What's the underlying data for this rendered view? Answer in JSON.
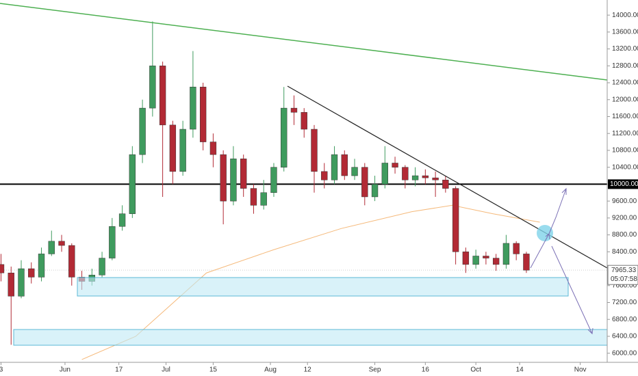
{
  "chart_data": {
    "type": "candlestick",
    "x": [
      -19,
      -16,
      -13,
      -10,
      -7,
      -4,
      -1,
      2,
      5,
      8,
      11,
      14,
      17,
      20,
      23,
      26,
      29,
      32,
      35,
      38,
      41,
      44,
      47,
      50,
      53,
      56,
      59,
      62,
      65,
      68,
      71,
      74,
      77,
      80,
      83,
      86,
      89,
      92,
      95,
      98,
      101,
      104,
      107,
      110,
      113,
      116,
      119,
      122,
      125,
      128,
      131,
      134,
      137
    ],
    "open": [
      8100,
      7900,
      7350,
      8000,
      7800,
      8350,
      8650,
      8550,
      7800,
      7700,
      7850,
      8250,
      9000,
      9300,
      10700,
      11800,
      12800,
      11400,
      10300,
      11300,
      12300,
      11000,
      10700,
      9600,
      10600,
      9900,
      9500,
      9800,
      10400,
      11800,
      11700,
      11300,
      10300,
      10100,
      10700,
      10200,
      10400,
      9700,
      10000,
      10500,
      10400,
      10100,
      10200,
      10150,
      10100,
      9900,
      8400,
      8100,
      8300,
      8250,
      8100,
      8600,
      8350
    ],
    "high": [
      8350,
      8050,
      8200,
      8150,
      8500,
      8900,
      8800,
      8600,
      7950,
      8000,
      8400,
      9200,
      9500,
      10900,
      12000,
      13850,
      12900,
      11500,
      11500,
      13150,
      12400,
      11200,
      10800,
      10900,
      10700,
      10000,
      10100,
      10500,
      12300,
      12100,
      11800,
      11400,
      10500,
      10900,
      10800,
      10600,
      10500,
      10200,
      10900,
      10650,
      10450,
      10400,
      10350,
      10300,
      10200,
      9950,
      8500,
      8450,
      8400,
      8350,
      8800,
      8650,
      8400
    ],
    "low": [
      7700,
      6200,
      7300,
      7650,
      7700,
      8300,
      8400,
      7600,
      7500,
      7600,
      7800,
      8200,
      8900,
      9200,
      10500,
      11600,
      9700,
      10000,
      10200,
      11100,
      10800,
      10400,
      9050,
      9500,
      9700,
      9300,
      9400,
      9700,
      10300,
      11400,
      11100,
      9800,
      9900,
      10000,
      10100,
      10100,
      9500,
      9600,
      9900,
      10250,
      9900,
      9950,
      10000,
      9700,
      9800,
      8100,
      7900,
      8000,
      8100,
      7950,
      8000,
      8200,
      7900
    ],
    "close": [
      7900,
      7350,
      8000,
      7800,
      8350,
      8650,
      8550,
      7800,
      7700,
      7850,
      8250,
      9000,
      9300,
      10700,
      11800,
      12800,
      11400,
      10300,
      11300,
      12300,
      11000,
      10700,
      9600,
      10600,
      9900,
      9500,
      9800,
      10400,
      11800,
      11700,
      11300,
      10300,
      10100,
      10700,
      10200,
      10400,
      9700,
      10000,
      10500,
      10400,
      10100,
      10200,
      10150,
      10100,
      9900,
      8400,
      8100,
      8300,
      8250,
      8100,
      8600,
      8350,
      7965
    ],
    "up_color": "#3f9b5e",
    "down_color": "#b22a35",
    "lines": [
      {
        "color": "#f5b97a",
        "x": [
          5,
          21,
          42,
          62,
          82,
          103,
          115,
          127,
          141
        ],
        "values": [
          5850,
          6400,
          7900,
          8450,
          8950,
          9350,
          9500,
          9300,
          9100
        ]
      }
    ],
    "level": {
      "value": 10000,
      "label": "10000.00"
    },
    "last_price": {
      "value": 7965.33,
      "label": "7965.33"
    },
    "countdown": "05:07:58",
    "xlim": [
      -19.3,
      161
    ],
    "ylim": [
      5930,
      14180
    ],
    "xticks": [
      {
        "value": -19,
        "label": "3"
      },
      {
        "value": 0,
        "label": "Jun"
      },
      {
        "value": 16,
        "label": "17"
      },
      {
        "value": 30,
        "label": "Jul"
      },
      {
        "value": 44,
        "label": "15"
      },
      {
        "value": 61,
        "label": "Aug"
      },
      {
        "value": 72,
        "label": "12"
      },
      {
        "value": 92,
        "label": "Sep"
      },
      {
        "value": 107,
        "label": "16"
      },
      {
        "value": 122,
        "label": "Oct"
      },
      {
        "value": 135,
        "label": "14"
      },
      {
        "value": 153,
        "label": "Nov"
      }
    ],
    "yticks": [
      {
        "value": 6000,
        "label": "6000.00"
      },
      {
        "value": 6400,
        "label": "6400.00"
      },
      {
        "value": 6800,
        "label": "6800.00"
      },
      {
        "value": 7200,
        "label": "7200.00"
      },
      {
        "value": 7600,
        "label": "7600.00"
      },
      {
        "value": 8000,
        "label": "8000.00"
      },
      {
        "value": 8400,
        "label": "8400.00"
      },
      {
        "value": 8800,
        "label": "8800.00"
      },
      {
        "value": 9200,
        "label": "9200.00"
      },
      {
        "value": 9600,
        "label": "9600.00"
      },
      {
        "value": 10000,
        "label": "10000.00"
      },
      {
        "value": 10400,
        "label": "10400.00"
      },
      {
        "value": 10800,
        "label": "10800.00"
      },
      {
        "value": 11200,
        "label": "11200.00"
      },
      {
        "value": 11600,
        "label": "11600.00"
      },
      {
        "value": 12000,
        "label": "12000.00"
      },
      {
        "value": 12400,
        "label": "12400.00"
      },
      {
        "value": 12800,
        "label": "12800.00"
      },
      {
        "value": 13200,
        "label": "13200.00"
      },
      {
        "value": 13600,
        "label": "13600.00"
      },
      {
        "value": 14000,
        "label": "14000.00"
      }
    ]
  }
}
